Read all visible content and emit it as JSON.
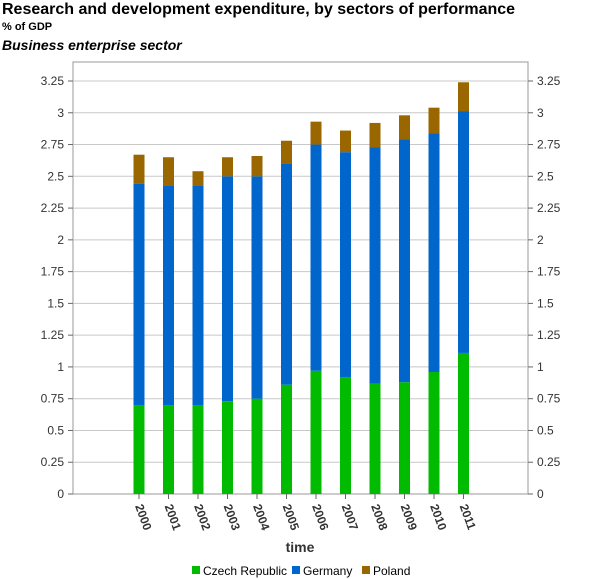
{
  "header": {
    "title": "Research and development expenditure, by sectors of performance",
    "unit": "% of GDP",
    "sector": "Business enterprise sector"
  },
  "chart_data": {
    "type": "bar",
    "stacked": true,
    "title": "Research and development expenditure, by sectors of performance",
    "xlabel": "time",
    "ylabel": "% of GDP",
    "ylim": [
      0,
      3.25
    ],
    "yticks": [
      "0",
      "0.25",
      "0.5",
      "0.75",
      "1",
      "1.25",
      "1.5",
      "1.75",
      "2",
      "2.25",
      "2.5",
      "2.75",
      "3",
      "3.25"
    ],
    "grid": true,
    "legend_position": "bottom",
    "categories": [
      "2000",
      "2001",
      "2002",
      "2003",
      "2004",
      "2005",
      "2006",
      "2007",
      "2008",
      "2009",
      "2010",
      "2011"
    ],
    "series": [
      {
        "name": "Czech Republic",
        "color": "#00bb00",
        "values": [
          0.7,
          0.7,
          0.7,
          0.73,
          0.75,
          0.86,
          0.97,
          0.92,
          0.87,
          0.88,
          0.96,
          1.11
        ]
      },
      {
        "name": "Germany",
        "color": "#0066cc",
        "values": [
          1.74,
          1.73,
          1.73,
          1.77,
          1.75,
          1.74,
          1.78,
          1.77,
          1.86,
          1.91,
          1.88,
          1.9
        ]
      },
      {
        "name": "Poland",
        "color": "#996600",
        "values": [
          0.23,
          0.22,
          0.11,
          0.15,
          0.16,
          0.18,
          0.18,
          0.17,
          0.19,
          0.19,
          0.2,
          0.23
        ]
      }
    ]
  }
}
